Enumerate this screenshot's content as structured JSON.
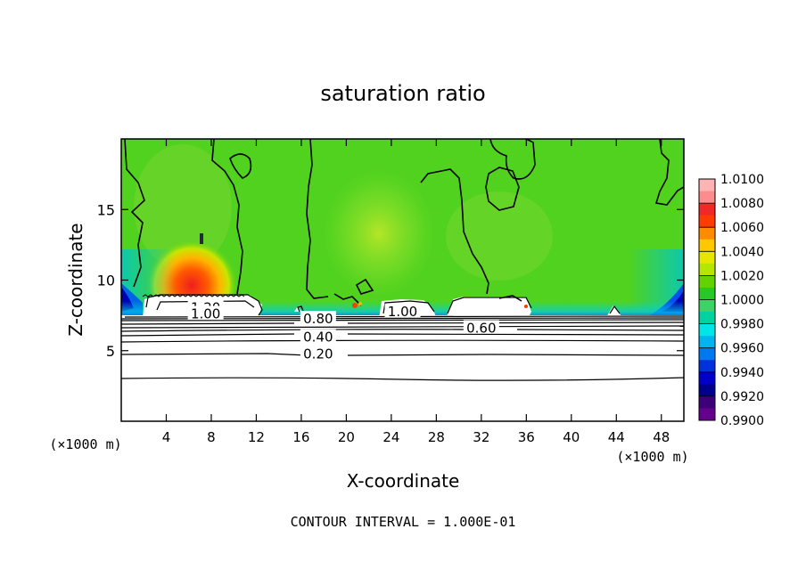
{
  "chart_data": {
    "type": "heatmap",
    "title": "saturation ratio",
    "xlabel": "X-coordinate",
    "ylabel": "Z-coordinate",
    "x_unit_left": "(×1000 m)",
    "x_unit_right": "(×1000 m)",
    "xlim": [
      0,
      50
    ],
    "ylim": [
      0,
      20
    ],
    "x_ticks": [
      4,
      8,
      12,
      16,
      20,
      24,
      28,
      32,
      36,
      40,
      44,
      48
    ],
    "y_ticks": [
      5,
      10,
      15
    ],
    "footer": "CONTOUR INTERVAL = 1.000E-01",
    "colorbar": {
      "labels": [
        "1.0100",
        "1.0080",
        "1.0060",
        "1.0040",
        "1.0020",
        "1.0000",
        "0.9980",
        "0.9960",
        "0.9940",
        "0.9920",
        "0.9900"
      ],
      "colors": [
        "#ffb4b4",
        "#ff8c8c",
        "#f02828",
        "#ff3c00",
        "#ff8c00",
        "#ffc800",
        "#e6e600",
        "#b4e600",
        "#64d200",
        "#28c828",
        "#3cd264",
        "#00d2a0",
        "#00e6e6",
        "#00b4f0",
        "#0078f0",
        "#0032dc",
        "#0000c8",
        "#00008c",
        "#3c0078",
        "#64008c"
      ]
    },
    "contour_labels": [
      {
        "text": "1.20",
        "x": 7.5,
        "y": 8.05
      },
      {
        "text": "1.00",
        "x": 7.5,
        "y": 7.6
      },
      {
        "text": "0.80",
        "x": 17.5,
        "y": 7.25
      },
      {
        "text": "1.00",
        "x": 25.0,
        "y": 7.75
      },
      {
        "text": "0.60",
        "x": 32.0,
        "y": 6.6
      },
      {
        "text": "0.40",
        "x": 17.5,
        "y": 5.95
      },
      {
        "text": "0.20",
        "x": 17.5,
        "y": 4.75
      }
    ]
  }
}
